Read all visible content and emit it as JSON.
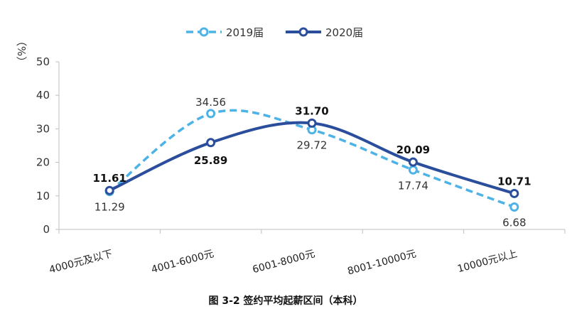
{
  "chart_data": {
    "type": "line",
    "categories": [
      "4000元及以下",
      "4001-6000元",
      "6001-8000元",
      "8001-10000元",
      "10000元以上"
    ],
    "series": [
      {
        "name": "2019届",
        "values": [
          11.29,
          34.56,
          29.72,
          17.74,
          6.68
        ],
        "color": "#4db3e6",
        "style": "dashed",
        "labels": [
          "11.29",
          "34.56",
          "29.72",
          "17.74",
          "6.68"
        ]
      },
      {
        "name": "2020届",
        "values": [
          11.61,
          25.89,
          31.7,
          20.09,
          10.71
        ],
        "color": "#2b4e9c",
        "style": "solid",
        "labels": [
          "11.61",
          "25.89",
          "31.70",
          "20.09",
          "10.71"
        ]
      }
    ],
    "ylabel": "（%）",
    "ylim": [
      0,
      50
    ],
    "yticks": [
      "0",
      "10",
      "20",
      "30",
      "40",
      "50"
    ],
    "grid": false,
    "smooth": true,
    "legend": "top-center",
    "caption": "图 3-2   签约平均起薪区间（本科）"
  }
}
